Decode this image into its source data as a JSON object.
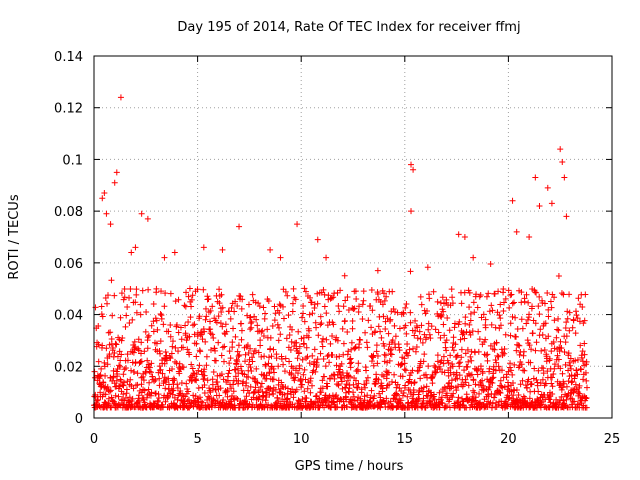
{
  "chart_data": {
    "type": "scatter",
    "title": "Day 195 of 2014, Rate Of TEC Index for receiver ffmj",
    "xlabel": "GPS time / hours",
    "ylabel": "ROTI / TECUs",
    "xlim": [
      0,
      25
    ],
    "ylim": [
      0,
      0.14
    ],
    "xticks": [
      0,
      5,
      10,
      15,
      20,
      25
    ],
    "xtick_labels": [
      "0",
      "5",
      "10",
      "15",
      "20",
      "25"
    ],
    "yticks": [
      0,
      0.02,
      0.04,
      0.06,
      0.08,
      0.1,
      0.12,
      0.14
    ],
    "ytick_labels": [
      "0",
      "0.02",
      "0.04",
      "0.06",
      "0.08",
      "0.1",
      "0.12",
      "0.14"
    ],
    "grid": true,
    "marker": "+",
    "series": [
      {
        "name": "ROTI",
        "color": "#ff0000",
        "x_range": [
          0,
          23.8
        ],
        "typical_min": 0.004,
        "typical_max": 0.05,
        "peaks": [
          {
            "x": 1.3,
            "y": 0.124
          },
          {
            "x": 0.5,
            "y": 0.087
          },
          {
            "x": 0.4,
            "y": 0.085
          },
          {
            "x": 1.0,
            "y": 0.091
          },
          {
            "x": 1.1,
            "y": 0.095
          },
          {
            "x": 0.6,
            "y": 0.079
          },
          {
            "x": 0.8,
            "y": 0.075
          },
          {
            "x": 2.3,
            "y": 0.079
          },
          {
            "x": 2.6,
            "y": 0.077
          },
          {
            "x": 1.8,
            "y": 0.064
          },
          {
            "x": 2.0,
            "y": 0.066
          },
          {
            "x": 3.4,
            "y": 0.062
          },
          {
            "x": 3.9,
            "y": 0.064
          },
          {
            "x": 5.3,
            "y": 0.066
          },
          {
            "x": 6.2,
            "y": 0.065
          },
          {
            "x": 7.0,
            "y": 0.074
          },
          {
            "x": 8.5,
            "y": 0.065
          },
          {
            "x": 9.0,
            "y": 0.062
          },
          {
            "x": 9.8,
            "y": 0.075
          },
          {
            "x": 10.8,
            "y": 0.069
          },
          {
            "x": 11.2,
            "y": 0.062
          },
          {
            "x": 12.1,
            "y": 0.055
          },
          {
            "x": 13.7,
            "y": 0.057
          },
          {
            "x": 15.3,
            "y": 0.098
          },
          {
            "x": 15.4,
            "y": 0.096
          },
          {
            "x": 15.3,
            "y": 0.08
          },
          {
            "x": 17.6,
            "y": 0.071
          },
          {
            "x": 17.9,
            "y": 0.07
          },
          {
            "x": 18.3,
            "y": 0.062
          },
          {
            "x": 20.2,
            "y": 0.084
          },
          {
            "x": 20.4,
            "y": 0.072
          },
          {
            "x": 21.0,
            "y": 0.07
          },
          {
            "x": 21.3,
            "y": 0.093
          },
          {
            "x": 21.5,
            "y": 0.082
          },
          {
            "x": 21.9,
            "y": 0.089
          },
          {
            "x": 22.1,
            "y": 0.083
          },
          {
            "x": 22.5,
            "y": 0.104
          },
          {
            "x": 22.6,
            "y": 0.099
          },
          {
            "x": 22.7,
            "y": 0.093
          },
          {
            "x": 22.8,
            "y": 0.078
          }
        ]
      }
    ]
  }
}
